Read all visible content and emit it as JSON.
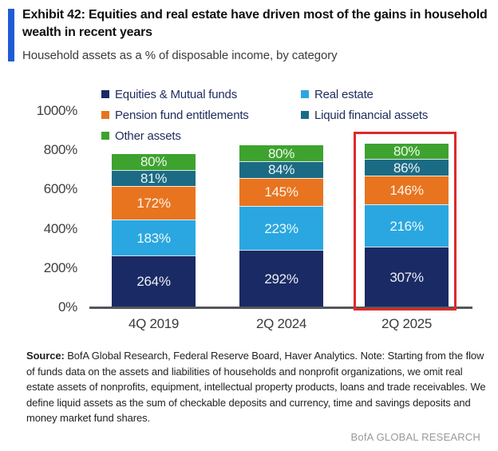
{
  "header": {
    "title": "Exhibit 42: Equities and real estate have driven most of the gains in household wealth in recent years",
    "subtitle": "Household assets as a % of disposable income, by category"
  },
  "accent_color": "#1f5bd5",
  "chart_data": {
    "type": "bar",
    "stacked": true,
    "title": "Household assets as a % of disposable income, by category",
    "categories": [
      "4Q 2019",
      "2Q 2024",
      "2Q 2025"
    ],
    "series": [
      {
        "name": "Equities & Mutual funds",
        "color": "#1a2a64",
        "values": [
          264,
          292,
          307
        ],
        "labels": [
          "264%",
          "292%",
          "307%"
        ]
      },
      {
        "name": "Real estate",
        "color": "#2aa7e0",
        "values": [
          183,
          223,
          216
        ],
        "labels": [
          "183%",
          "223%",
          "216%"
        ]
      },
      {
        "name": "Pension fund entitlements",
        "color": "#e8741f",
        "values": [
          172,
          145,
          146
        ],
        "labels": [
          "172%",
          "145%",
          "146%"
        ]
      },
      {
        "name": "Liquid financial assets",
        "color": "#1c6b84",
        "values": [
          81,
          84,
          86
        ],
        "labels": [
          "81%",
          "84%",
          "86%"
        ]
      },
      {
        "name": "Other assets",
        "color": "#3da32e",
        "values": [
          80,
          80,
          80
        ],
        "labels": [
          "80%",
          "80%",
          "80%"
        ]
      }
    ],
    "totals": [
      780,
      824,
      835
    ],
    "y_axis": {
      "ticks": [
        {
          "value": 0,
          "label": "0%"
        },
        {
          "value": 200,
          "label": "200%"
        },
        {
          "value": 400,
          "label": "400%"
        },
        {
          "value": 600,
          "label": "600%"
        },
        {
          "value": 800,
          "label": "800%"
        },
        {
          "value": 1000,
          "label": "1000%"
        }
      ],
      "range": [
        0,
        1000
      ],
      "grid": false
    },
    "legend": {
      "position": "top",
      "columns": [
        [
          "Equities & Mutual funds",
          "Pension fund entitlements",
          "Other assets"
        ],
        [
          "Real estate",
          "Liquid financial assets"
        ]
      ]
    },
    "highlight": {
      "category": "2Q 2025",
      "box_color": "#dc2a2b"
    }
  },
  "footer": {
    "source_label": "Source:",
    "source_text": " BofA Global Research, Federal Reserve Board, Haver Analytics. Note: Starting from the flow of funds data on the assets and liabilities of households and nonprofit organizations, we omit real estate assets of nonprofits, equipment, intellectual property products, loans and trade receivables. We define liquid assets as the sum of checkable deposits and currency, time and savings deposits and money market fund shares.",
    "branding": "BofA GLOBAL RESEARCH"
  }
}
